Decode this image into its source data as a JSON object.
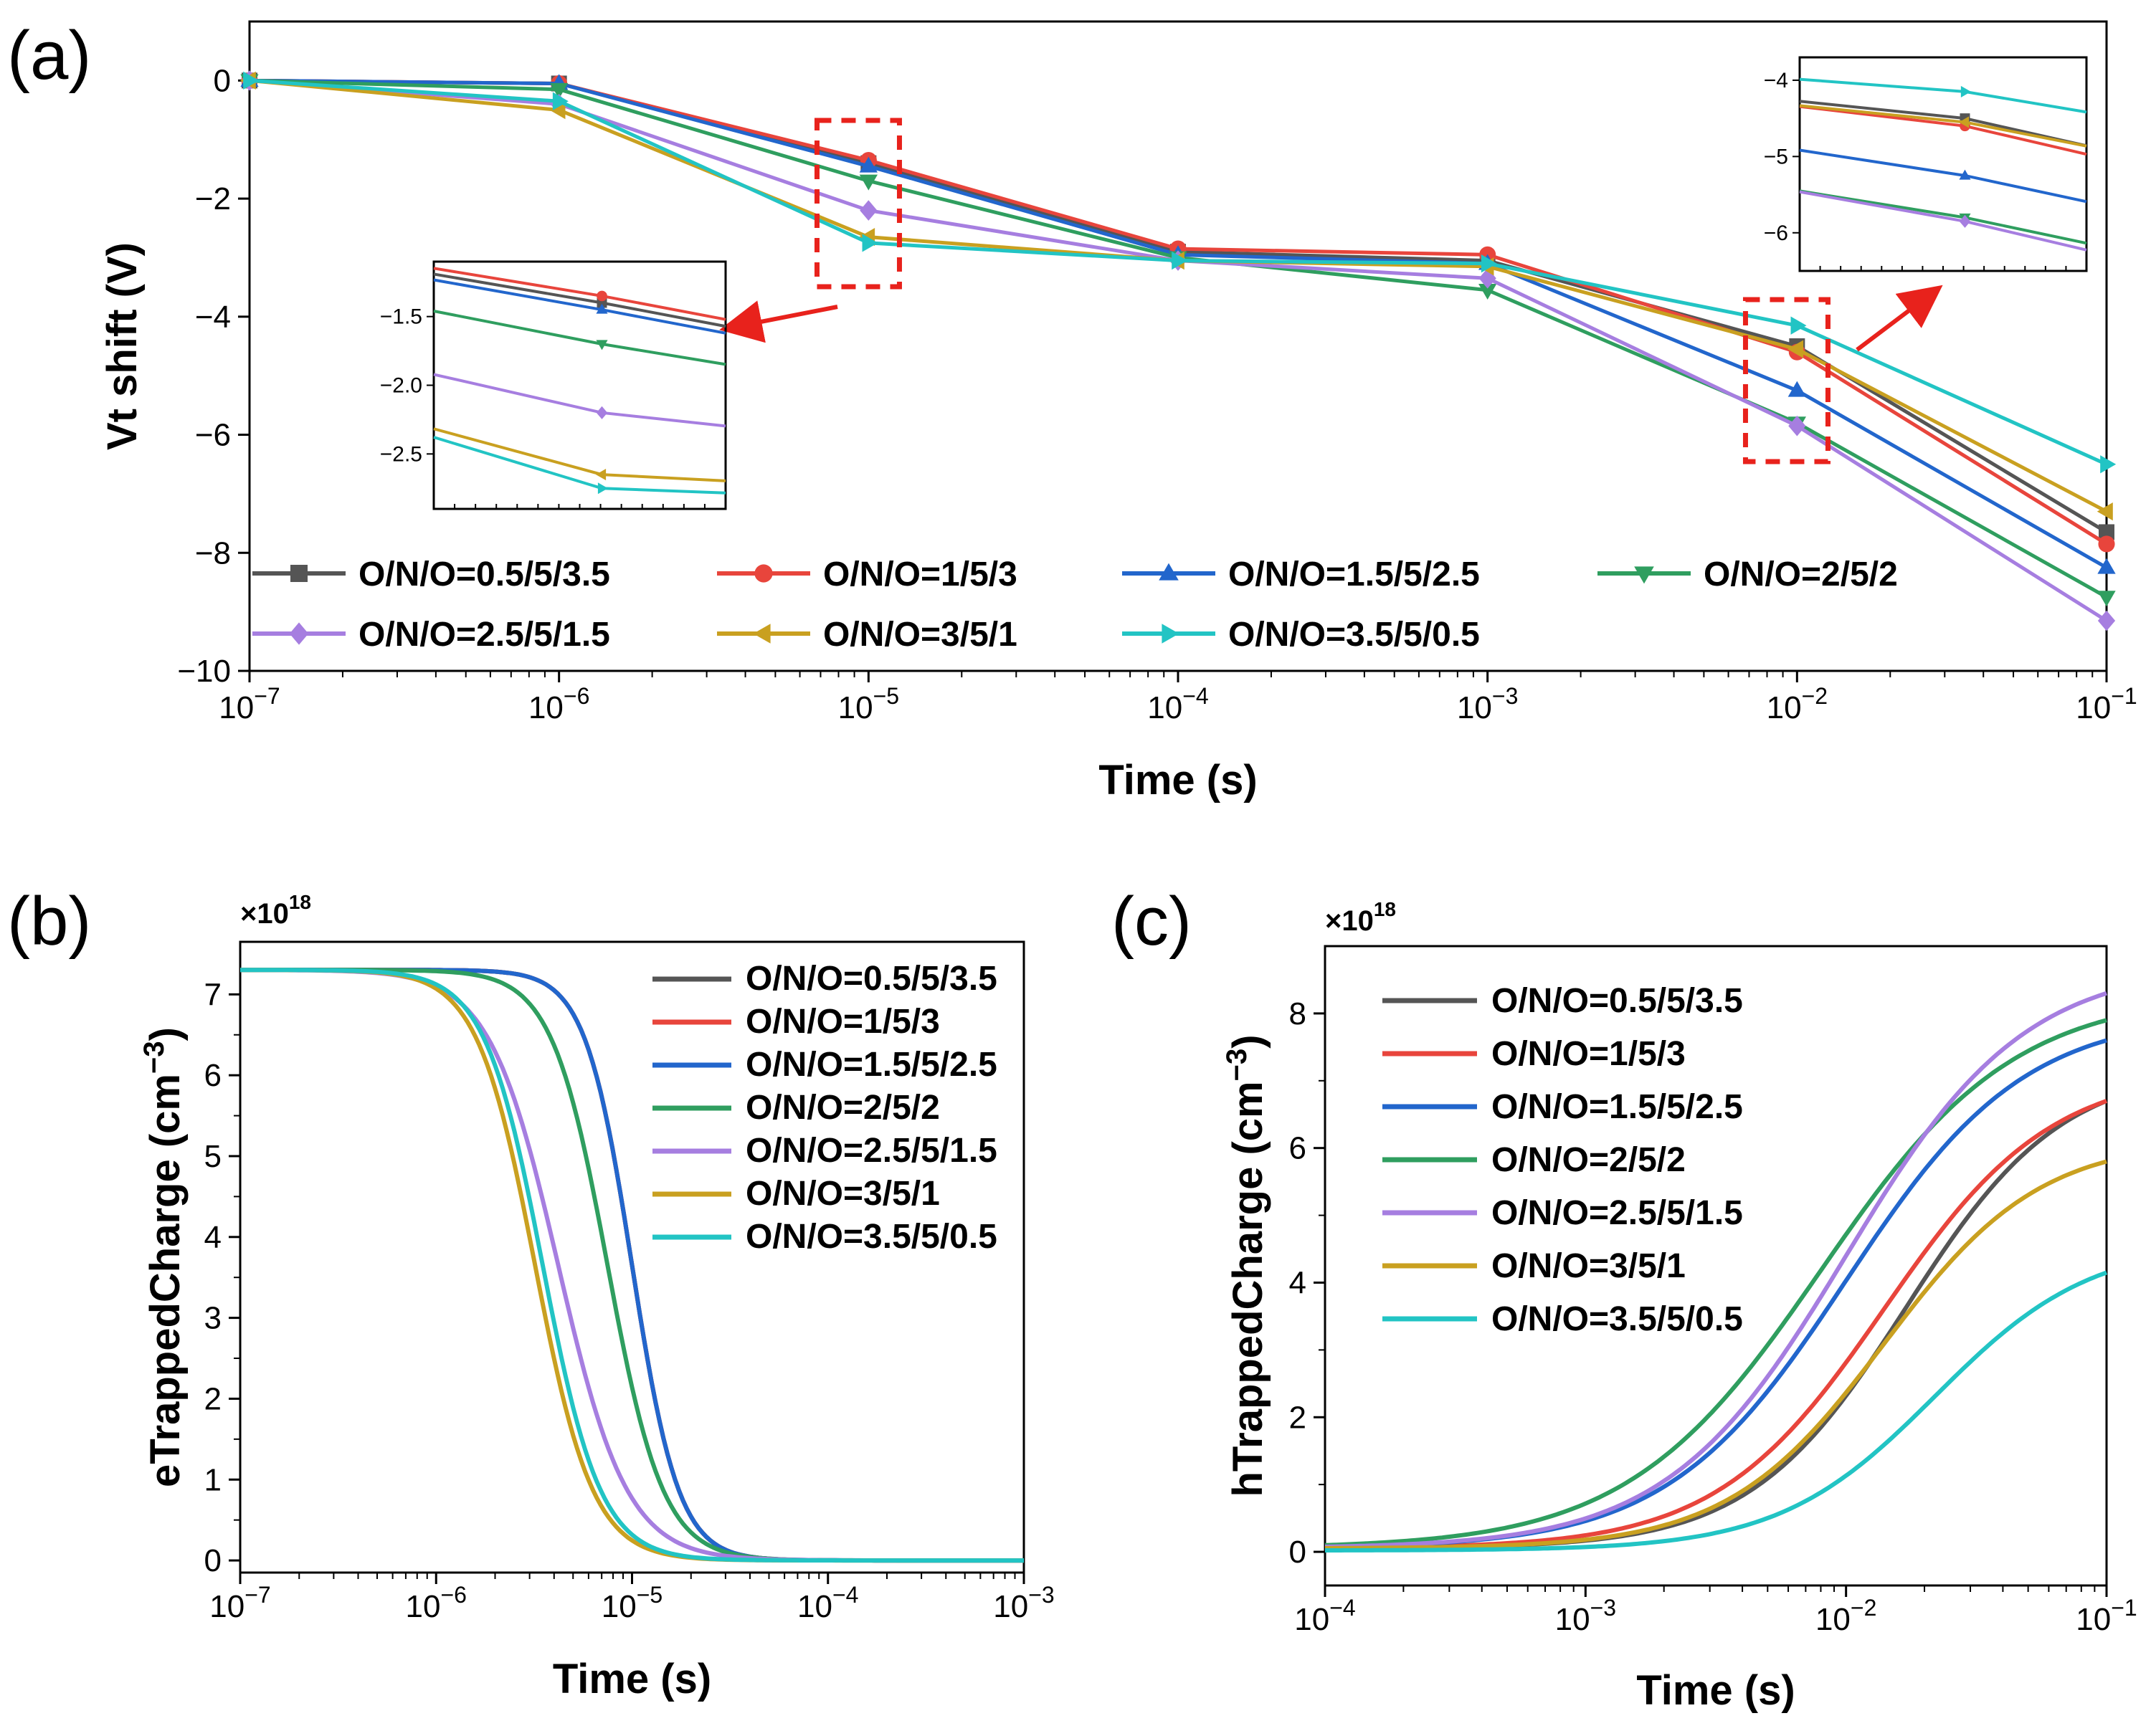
{
  "colors": {
    "O/N/O=0.5/5/3.5": "#555555",
    "O/N/O=1/5/3": "#e8453c",
    "O/N/O=1.5/5/2.5": "#2266cc",
    "O/N/O=2/5/2": "#2f9e5f",
    "O/N/O=2.5/5/1.5": "#a67ee0",
    "O/N/O=3/5/1": "#c9a020",
    "O/N/O=3.5/5/0.5": "#22c4c4",
    "highlight_box": "#e8221c"
  },
  "chart_data": [
    {
      "panel_label": "(a)",
      "type": "line",
      "xscale": "log",
      "xlabel": "Time (s)",
      "ylabel": "Vt shift (V)",
      "xlim_exp": [
        -7,
        -1
      ],
      "xticks": [
        {
          "base": "10",
          "exp": "−7"
        },
        {
          "base": "10",
          "exp": "−6"
        },
        {
          "base": "10",
          "exp": "−5"
        },
        {
          "base": "10",
          "exp": "−4"
        },
        {
          "base": "10",
          "exp": "−3"
        },
        {
          "base": "10",
          "exp": "−2"
        },
        {
          "base": "10",
          "exp": "−1"
        }
      ],
      "ylim": [
        -10,
        1
      ],
      "yticks": [
        0,
        -2,
        -4,
        -6,
        -8,
        -10
      ],
      "ytick_labels": [
        "0",
        "−2",
        "−4",
        "−6",
        "−8",
        "−10"
      ],
      "legend_position": "bottom-left, 4 columns",
      "x": [
        1e-07,
        1e-06,
        1e-05,
        0.0001,
        0.001,
        0.01,
        0.1
      ],
      "series": [
        {
          "name": "O/N/O=0.5/5/3.5",
          "marker": "square",
          "values": [
            0,
            -0.05,
            -1.4,
            -2.9,
            -3.05,
            -4.5,
            -7.65
          ]
        },
        {
          "name": "O/N/O=1/5/3",
          "marker": "circle",
          "values": [
            0,
            -0.05,
            -1.35,
            -2.85,
            -2.95,
            -4.6,
            -7.85
          ]
        },
        {
          "name": "O/N/O=1.5/5/2.5",
          "marker": "triangle-up",
          "values": [
            0,
            -0.05,
            -1.45,
            -2.95,
            -3.1,
            -5.25,
            -8.25
          ]
        },
        {
          "name": "O/N/O=2/5/2",
          "marker": "triangle-down",
          "values": [
            0,
            -0.15,
            -1.7,
            -3.0,
            -3.55,
            -5.8,
            -8.75
          ]
        },
        {
          "name": "O/N/O=2.5/5/1.5",
          "marker": "diamond",
          "values": [
            0,
            -0.4,
            -2.2,
            -3.05,
            -3.35,
            -5.85,
            -9.15
          ]
        },
        {
          "name": "O/N/O=3/5/1",
          "marker": "triangle-left",
          "values": [
            0,
            -0.5,
            -2.65,
            -3.05,
            -3.15,
            -4.55,
            -7.3
          ]
        },
        {
          "name": "O/N/O=3.5/5/0.5",
          "marker": "triangle-right",
          "values": [
            0,
            -0.35,
            -2.75,
            -3.05,
            -3.1,
            -4.15,
            -6.5
          ]
        }
      ],
      "insets": [
        {
          "name": "inset-left",
          "x_range": [
            7e-06,
            1.3e-05
          ],
          "ylim": [
            -2.9,
            -1.1
          ],
          "yticks": [
            -1.5,
            -2.0,
            -2.5
          ],
          "ytick_labels": [
            "−1.5",
            "−2.0",
            "−2.5"
          ]
        },
        {
          "name": "inset-right",
          "x_range": [
            0.007,
            0.013
          ],
          "ylim": [
            -6.5,
            -3.7
          ],
          "yticks": [
            -4,
            -5,
            -6
          ],
          "ytick_labels": [
            "−4",
            "−5",
            "−6"
          ]
        }
      ]
    },
    {
      "panel_label": "(b)",
      "type": "line",
      "xscale": "log",
      "xlabel": "Time (s)",
      "ylabel_main": "eTrappedCharge (cm",
      "ylabel_sup": "−3",
      "ylabel_end": ")",
      "multiplier_base": "×10",
      "multiplier_exp": "18",
      "xlim_exp": [
        -7,
        -3
      ],
      "xticks": [
        {
          "base": "10",
          "exp": "−7"
        },
        {
          "base": "10",
          "exp": "−6"
        },
        {
          "base": "10",
          "exp": "−5"
        },
        {
          "base": "10",
          "exp": "−4"
        },
        {
          "base": "10",
          "exp": "−3"
        }
      ],
      "ylim": [
        -0.15,
        7.65
      ],
      "yticks": [
        0,
        1,
        2,
        3,
        4,
        5,
        6,
        7
      ],
      "ytick_labels": [
        "0",
        "1",
        "2",
        "3",
        "4",
        "5",
        "6",
        "7"
      ],
      "legend_position": "top-right",
      "series": [
        {
          "name": "O/N/O=0.5/5/3.5",
          "y0": 7.3,
          "t_half": 1e-05,
          "width_decades": 0.42
        },
        {
          "name": "O/N/O=1/5/3",
          "y0": 7.3,
          "t_half": 1e-05,
          "width_decades": 0.42
        },
        {
          "name": "O/N/O=1.5/5/2.5",
          "y0": 7.3,
          "t_half": 1e-05,
          "width_decades": 0.42
        },
        {
          "name": "O/N/O=2/5/2",
          "y0": 7.3,
          "t_half": 7.5e-06,
          "width_decades": 0.5
        },
        {
          "name": "O/N/O=2.5/5/1.5",
          "y0": 7.3,
          "t_half": 4.2e-06,
          "width_decades": 0.62
        },
        {
          "name": "O/N/O=3/5/1",
          "y0": 7.3,
          "t_half": 3.2e-06,
          "width_decades": 0.52
        },
        {
          "name": "O/N/O=3.5/5/0.5",
          "y0": 7.3,
          "t_half": 3.5e-06,
          "width_decades": 0.52
        }
      ]
    },
    {
      "panel_label": "(c)",
      "type": "line",
      "xscale": "log",
      "xlabel": "Time (s)",
      "ylabel_main": "hTrappedCharge (cm",
      "ylabel_sup": "−3",
      "ylabel_end": ")",
      "multiplier_base": "×10",
      "multiplier_exp": "18",
      "xlim_exp": [
        -4,
        -1
      ],
      "xticks": [
        {
          "base": "10",
          "exp": "−4"
        },
        {
          "base": "10",
          "exp": "−3"
        },
        {
          "base": "10",
          "exp": "−2"
        },
        {
          "base": "10",
          "exp": "−1"
        }
      ],
      "ylim": [
        -0.5,
        9.0
      ],
      "yticks": [
        0,
        2,
        4,
        6,
        8
      ],
      "ytick_labels": [
        "0",
        "2",
        "4",
        "6",
        "8"
      ],
      "legend_position": "top-left",
      "series": [
        {
          "name": "O/N/O=0.5/5/3.5",
          "y_start": 0.05,
          "y_end": 6.7,
          "t_mid": 0.017,
          "width_decades": 0.42
        },
        {
          "name": "O/N/O=1/5/3",
          "y_start": 0.05,
          "y_end": 6.7,
          "t_mid": 0.014,
          "width_decades": 0.45
        },
        {
          "name": "O/N/O=1.5/5/2.5",
          "y_start": 0.05,
          "y_end": 7.6,
          "t_mid": 0.01,
          "width_decades": 0.48
        },
        {
          "name": "O/N/O=2/5/2",
          "y_start": 0.05,
          "y_end": 7.9,
          "t_mid": 0.008,
          "width_decades": 0.52
        },
        {
          "name": "O/N/O=2.5/5/1.5",
          "y_start": 0.05,
          "y_end": 8.3,
          "t_mid": 0.01,
          "width_decades": 0.48
        },
        {
          "name": "O/N/O=3/5/1",
          "y_start": 0.05,
          "y_end": 5.8,
          "t_mid": 0.014,
          "width_decades": 0.42
        },
        {
          "name": "O/N/O=3.5/5/0.5",
          "y_start": 0.02,
          "y_end": 4.15,
          "t_mid": 0.022,
          "width_decades": 0.42
        }
      ]
    }
  ]
}
